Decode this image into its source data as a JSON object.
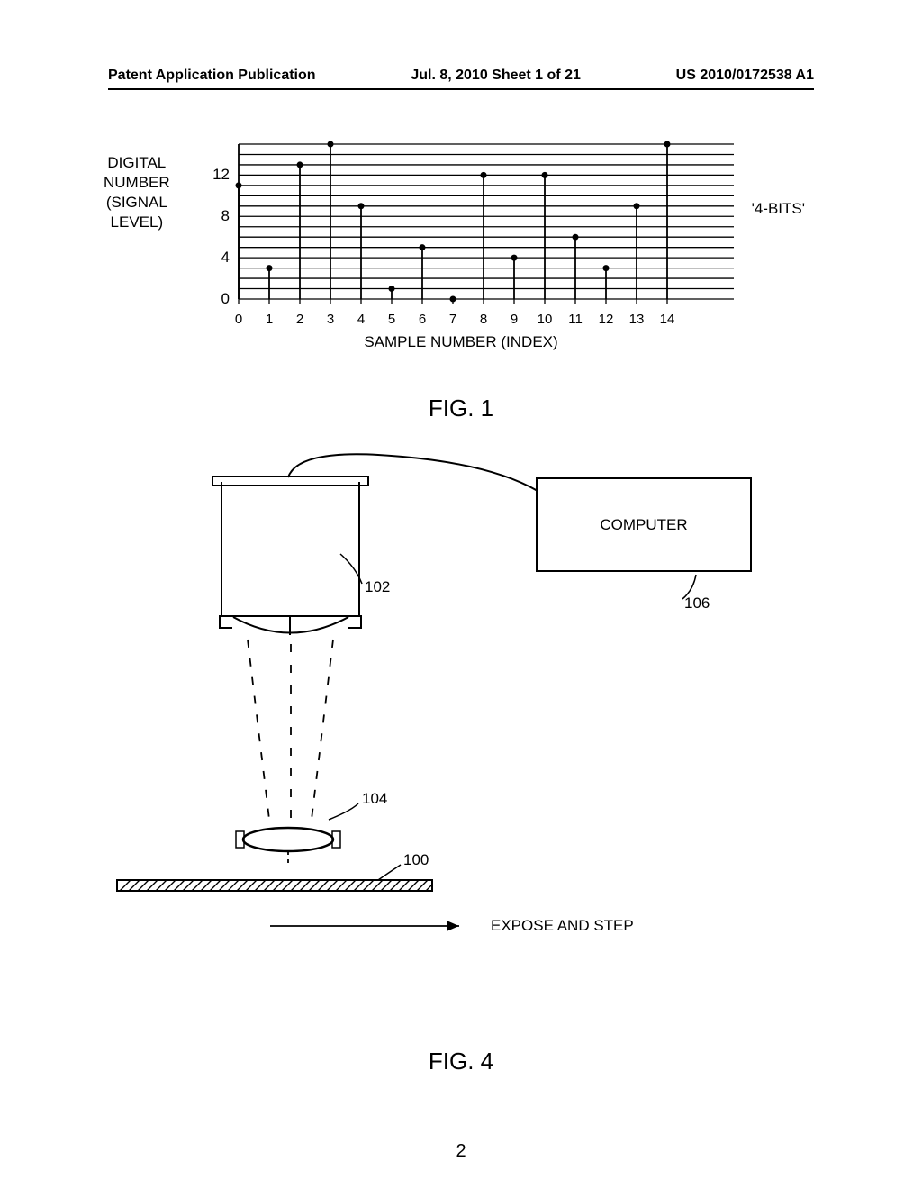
{
  "header": {
    "left": "Patent Application Publication",
    "center": "Jul. 8, 2010  Sheet 1 of 21",
    "right": "US 2010/0172538 A1"
  },
  "chart": {
    "type": "stem",
    "y_label_line1": "DIGITAL",
    "y_label_line2": "NUMBER",
    "y_label_line3": "(SIGNAL",
    "y_label_line4": "LEVEL)",
    "x_label": "SAMPLE NUMBER (INDEX)",
    "annotation": "'4-BITS'",
    "y_ticks": [
      0,
      4,
      8,
      12
    ],
    "y_max": 15,
    "x_ticks": [
      0,
      1,
      2,
      3,
      4,
      5,
      6,
      7,
      8,
      9,
      10,
      11,
      12,
      13,
      14
    ],
    "x_max": 15,
    "gridlines_y": [
      0,
      1,
      2,
      3,
      4,
      5,
      6,
      7,
      8,
      9,
      10,
      11,
      12,
      13,
      14,
      15
    ],
    "data": [
      {
        "x": 0,
        "y": 11
      },
      {
        "x": 1,
        "y": 3
      },
      {
        "x": 2,
        "y": 13
      },
      {
        "x": 3,
        "y": 15
      },
      {
        "x": 4,
        "y": 9
      },
      {
        "x": 5,
        "y": 1
      },
      {
        "x": 6,
        "y": 5
      },
      {
        "x": 7,
        "y": 0
      },
      {
        "x": 8,
        "y": 12
      },
      {
        "x": 9,
        "y": 4
      },
      {
        "x": 10,
        "y": 12
      },
      {
        "x": 11,
        "y": 6
      },
      {
        "x": 12,
        "y": 3
      },
      {
        "x": 13,
        "y": 9
      },
      {
        "x": 14,
        "y": 15
      }
    ],
    "grid_color": "#000000",
    "stem_color": "#000000",
    "marker_color": "#000000",
    "marker_radius": 3.5,
    "background_color": "#ffffff"
  },
  "fig1_label": "FIG. 1",
  "fig4_label": "FIG. 4",
  "diagram": {
    "computer_label": "COMPUTER",
    "ref_102": "102",
    "ref_104": "104",
    "ref_106": "106",
    "ref_100": "100",
    "expose_step_label": "EXPOSE AND STEP"
  },
  "page_number": "2"
}
